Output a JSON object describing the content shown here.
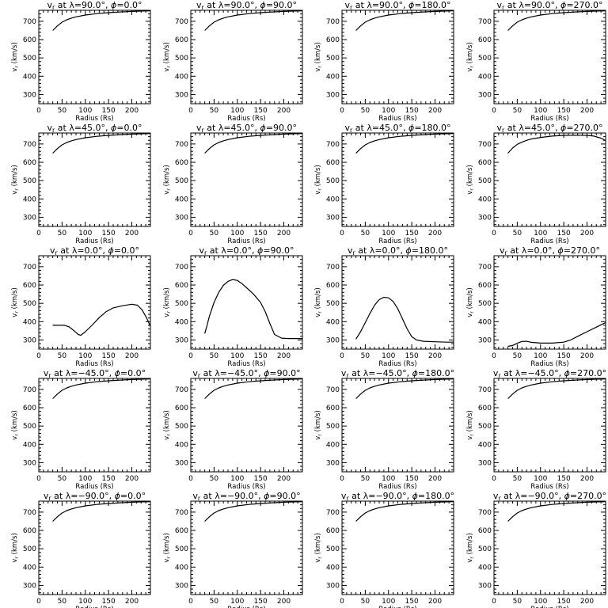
{
  "chart_data": [
    {
      "type": "line",
      "title": {
        "lead": "v",
        "sub": "r",
        "mid": " at λ=90.0°, ",
        "phi": "ϕ",
        "tail": "=0.0°"
      },
      "xlabel": "Radius (Rs)",
      "ylabel": "v",
      "ylabel_sub": "r",
      "ylabel_unit": " (km/s)",
      "xlim": [
        0,
        240
      ],
      "ylim": [
        250,
        760
      ],
      "xticks": [
        "0",
        "50",
        "100",
        "150",
        "200"
      ],
      "yticks": [
        "300",
        "400",
        "500",
        "600",
        "700"
      ],
      "x": [
        30,
        40,
        50,
        60,
        70,
        80,
        100,
        125,
        150,
        175,
        200,
        225,
        240
      ],
      "y": [
        650,
        675,
        695,
        708,
        717,
        724,
        734,
        742,
        747,
        751,
        754,
        756,
        757
      ]
    },
    {
      "type": "line",
      "title": {
        "lead": "v",
        "sub": "r",
        "mid": " at λ=90.0°, ",
        "phi": "ϕ",
        "tail": "=90.0°"
      },
      "xlabel": "Radius (Rs)",
      "ylabel": "v",
      "ylabel_sub": "r",
      "ylabel_unit": " (km/s)",
      "xlim": [
        0,
        240
      ],
      "ylim": [
        250,
        760
      ],
      "xticks": [
        "0",
        "50",
        "100",
        "150",
        "200"
      ],
      "yticks": [
        "300",
        "400",
        "500",
        "600",
        "700"
      ],
      "x": [
        30,
        40,
        50,
        60,
        70,
        80,
        100,
        125,
        150,
        175,
        200,
        225,
        240
      ],
      "y": [
        650,
        675,
        695,
        708,
        717,
        724,
        734,
        742,
        747,
        751,
        754,
        756,
        757
      ]
    },
    {
      "type": "line",
      "title": {
        "lead": "v",
        "sub": "r",
        "mid": " at λ=90.0°, ",
        "phi": "ϕ",
        "tail": "=180.0°"
      },
      "xlabel": "Radius (Rs)",
      "ylabel": "v",
      "ylabel_sub": "r",
      "ylabel_unit": " (km/s)",
      "xlim": [
        0,
        240
      ],
      "ylim": [
        250,
        760
      ],
      "xticks": [
        "0",
        "50",
        "100",
        "150",
        "200"
      ],
      "yticks": [
        "300",
        "400",
        "500",
        "600",
        "700"
      ],
      "x": [
        30,
        40,
        50,
        60,
        70,
        80,
        100,
        125,
        150,
        175,
        200,
        225,
        240
      ],
      "y": [
        650,
        675,
        695,
        708,
        717,
        724,
        734,
        742,
        747,
        751,
        754,
        756,
        757
      ]
    },
    {
      "type": "line",
      "title": {
        "lead": "v",
        "sub": "r",
        "mid": " at λ=90.0°, ",
        "phi": "ϕ",
        "tail": "=270.0°"
      },
      "xlabel": "Radius (Rs)",
      "ylabel": "v",
      "ylabel_sub": "r",
      "ylabel_unit": " (km/s)",
      "xlim": [
        0,
        240
      ],
      "ylim": [
        250,
        760
      ],
      "xticks": [
        "0",
        "50",
        "100",
        "150",
        "200"
      ],
      "yticks": [
        "300",
        "400",
        "500",
        "600",
        "700"
      ],
      "x": [
        30,
        40,
        50,
        60,
        70,
        80,
        100,
        125,
        150,
        175,
        200,
        225,
        240
      ],
      "y": [
        650,
        675,
        695,
        708,
        717,
        724,
        734,
        742,
        747,
        751,
        754,
        756,
        757
      ]
    },
    {
      "type": "line",
      "title": {
        "lead": "v",
        "sub": "r",
        "mid": " at λ=45.0°, ",
        "phi": "ϕ",
        "tail": "=0.0°"
      },
      "xlabel": "Radius (Rs)",
      "ylabel": "v",
      "ylabel_sub": "r",
      "ylabel_unit": " (km/s)",
      "xlim": [
        0,
        240
      ],
      "ylim": [
        250,
        760
      ],
      "xticks": [
        "0",
        "50",
        "100",
        "150",
        "200"
      ],
      "yticks": [
        "300",
        "400",
        "500",
        "600",
        "700"
      ],
      "x": [
        30,
        40,
        50,
        60,
        70,
        80,
        100,
        125,
        150,
        175,
        200,
        225,
        240
      ],
      "y": [
        650,
        675,
        695,
        708,
        717,
        724,
        734,
        742,
        747,
        751,
        754,
        756,
        757
      ]
    },
    {
      "type": "line",
      "title": {
        "lead": "v",
        "sub": "r",
        "mid": " at λ=45.0°, ",
        "phi": "ϕ",
        "tail": "=90.0°"
      },
      "xlabel": "Radius (Rs)",
      "ylabel": "v",
      "ylabel_sub": "r",
      "ylabel_unit": " (km/s)",
      "xlim": [
        0,
        240
      ],
      "ylim": [
        250,
        760
      ],
      "xticks": [
        "0",
        "50",
        "100",
        "150",
        "200"
      ],
      "yticks": [
        "300",
        "400",
        "500",
        "600",
        "700"
      ],
      "x": [
        30,
        40,
        50,
        60,
        70,
        80,
        100,
        125,
        150,
        175,
        200,
        225,
        240
      ],
      "y": [
        650,
        675,
        695,
        708,
        717,
        724,
        734,
        742,
        747,
        751,
        754,
        756,
        757
      ]
    },
    {
      "type": "line",
      "title": {
        "lead": "v",
        "sub": "r",
        "mid": " at λ=45.0°, ",
        "phi": "ϕ",
        "tail": "=180.0°"
      },
      "xlabel": "Radius (Rs)",
      "ylabel": "v",
      "ylabel_sub": "r",
      "ylabel_unit": " (km/s)",
      "xlim": [
        0,
        240
      ],
      "ylim": [
        250,
        760
      ],
      "xticks": [
        "0",
        "50",
        "100",
        "150",
        "200"
      ],
      "yticks": [
        "300",
        "400",
        "500",
        "600",
        "700"
      ],
      "x": [
        30,
        40,
        50,
        60,
        70,
        80,
        100,
        125,
        150,
        175,
        200,
        225,
        240
      ],
      "y": [
        650,
        675,
        695,
        708,
        717,
        724,
        734,
        742,
        747,
        751,
        754,
        756,
        757
      ]
    },
    {
      "type": "line",
      "title": {
        "lead": "v",
        "sub": "r",
        "mid": " at λ=45.0°, ",
        "phi": "ϕ",
        "tail": "=270.0°"
      },
      "xlabel": "Radius (Rs)",
      "ylabel": "v",
      "ylabel_sub": "r",
      "ylabel_unit": " (km/s)",
      "xlim": [
        0,
        240
      ],
      "ylim": [
        250,
        760
      ],
      "xticks": [
        "0",
        "50",
        "100",
        "150",
        "200"
      ],
      "yticks": [
        "300",
        "400",
        "500",
        "600",
        "700"
      ],
      "x": [
        30,
        40,
        50,
        60,
        70,
        80,
        100,
        125,
        150,
        175,
        200,
        215,
        230,
        240
      ],
      "y": [
        650,
        678,
        698,
        710,
        720,
        727,
        736,
        743,
        747,
        748,
        747,
        743,
        732,
        718
      ]
    },
    {
      "type": "line",
      "title": {
        "lead": "v",
        "sub": "r",
        "mid": " at λ=0.0°, ",
        "phi": "ϕ",
        "tail": "=0.0°"
      },
      "xlabel": "Radius (Rs)",
      "ylabel": "v",
      "ylabel_sub": "r",
      "ylabel_unit": " (km/s)",
      "xlim": [
        0,
        240
      ],
      "ylim": [
        250,
        760
      ],
      "xticks": [
        "0",
        "50",
        "100",
        "150",
        "200"
      ],
      "yticks": [
        "300",
        "400",
        "500",
        "600",
        "700"
      ],
      "x": [
        30,
        45,
        55,
        65,
        75,
        85,
        90,
        100,
        115,
        130,
        145,
        160,
        180,
        200,
        212,
        222,
        232,
        240
      ],
      "y": [
        380,
        380,
        380,
        372,
        352,
        330,
        325,
        345,
        382,
        422,
        455,
        475,
        487,
        495,
        490,
        465,
        420,
        375
      ]
    },
    {
      "type": "line",
      "title": {
        "lead": "v",
        "sub": "r",
        "mid": " at λ=0.0°, ",
        "phi": "ϕ",
        "tail": "=90.0°"
      },
      "xlabel": "Radius (Rs)",
      "ylabel": "v",
      "ylabel_sub": "r",
      "ylabel_unit": " (km/s)",
      "xlim": [
        0,
        240
      ],
      "ylim": [
        250,
        760
      ],
      "xticks": [
        "0",
        "50",
        "100",
        "150",
        "200"
      ],
      "yticks": [
        "300",
        "400",
        "500",
        "600",
        "700"
      ],
      "x": [
        30,
        35,
        40,
        50,
        60,
        70,
        80,
        90,
        100,
        110,
        120,
        135,
        150,
        160,
        170,
        180,
        195,
        210,
        225,
        240
      ],
      "y": [
        335,
        380,
        430,
        505,
        560,
        598,
        620,
        630,
        625,
        608,
        585,
        550,
        505,
        455,
        390,
        330,
        310,
        308,
        308,
        308
      ]
    },
    {
      "type": "line",
      "title": {
        "lead": "v",
        "sub": "r",
        "mid": " at λ=0.0°, ",
        "phi": "ϕ",
        "tail": "=180.0°"
      },
      "xlabel": "Radius (Rs)",
      "ylabel": "v",
      "ylabel_sub": "r",
      "ylabel_unit": " (km/s)",
      "xlim": [
        0,
        240
      ],
      "ylim": [
        250,
        760
      ],
      "xticks": [
        "0",
        "50",
        "100",
        "150",
        "200"
      ],
      "yticks": [
        "300",
        "400",
        "500",
        "600",
        "700"
      ],
      "x": [
        30,
        40,
        50,
        60,
        70,
        80,
        90,
        100,
        110,
        120,
        130,
        140,
        150,
        160,
        175,
        200,
        225,
        240
      ],
      "y": [
        305,
        345,
        395,
        445,
        490,
        520,
        533,
        530,
        510,
        470,
        415,
        360,
        318,
        300,
        293,
        290,
        288,
        288
      ]
    },
    {
      "type": "line",
      "title": {
        "lead": "v",
        "sub": "r",
        "mid": " at λ=0.0°, ",
        "phi": "ϕ",
        "tail": "=270.0°"
      },
      "xlabel": "Radius (Rs)",
      "ylabel": "v",
      "ylabel_sub": "r",
      "ylabel_unit": " (km/s)",
      "xlim": [
        0,
        240
      ],
      "ylim": [
        250,
        760
      ],
      "xticks": [
        "0",
        "50",
        "100",
        "150",
        "200"
      ],
      "yticks": [
        "300",
        "400",
        "500",
        "600",
        "700"
      ],
      "x": [
        30,
        40,
        50,
        60,
        70,
        80,
        100,
        125,
        150,
        165,
        180,
        200,
        220,
        240
      ],
      "y": [
        265,
        270,
        282,
        292,
        293,
        287,
        283,
        283,
        288,
        300,
        320,
        345,
        370,
        395
      ]
    },
    {
      "type": "line",
      "title": {
        "lead": "v",
        "sub": "r",
        "mid": " at λ=−45.0°, ",
        "phi": "ϕ",
        "tail": "=0.0°"
      },
      "xlabel": "Radius (Rs)",
      "ylabel": "v",
      "ylabel_sub": "r",
      "ylabel_unit": " (km/s)",
      "xlim": [
        0,
        240
      ],
      "ylim": [
        250,
        760
      ],
      "xticks": [
        "0",
        "50",
        "100",
        "150",
        "200"
      ],
      "yticks": [
        "300",
        "400",
        "500",
        "600",
        "700"
      ],
      "x": [
        30,
        40,
        50,
        60,
        70,
        80,
        100,
        125,
        150,
        175,
        200,
        225,
        240
      ],
      "y": [
        650,
        675,
        695,
        708,
        717,
        724,
        734,
        742,
        747,
        751,
        754,
        756,
        757
      ]
    },
    {
      "type": "line",
      "title": {
        "lead": "v",
        "sub": "r",
        "mid": " at λ=−45.0°, ",
        "phi": "ϕ",
        "tail": "=90.0°"
      },
      "xlabel": "Radius (Rs)",
      "ylabel": "v",
      "ylabel_sub": "r",
      "ylabel_unit": " (km/s)",
      "xlim": [
        0,
        240
      ],
      "ylim": [
        250,
        760
      ],
      "xticks": [
        "0",
        "50",
        "100",
        "150",
        "200"
      ],
      "yticks": [
        "300",
        "400",
        "500",
        "600",
        "700"
      ],
      "x": [
        30,
        40,
        50,
        60,
        70,
        80,
        100,
        125,
        150,
        175,
        200,
        225,
        240
      ],
      "y": [
        650,
        675,
        695,
        708,
        717,
        724,
        734,
        742,
        747,
        751,
        754,
        756,
        757
      ]
    },
    {
      "type": "line",
      "title": {
        "lead": "v",
        "sub": "r",
        "mid": " at λ=−45.0°, ",
        "phi": "ϕ",
        "tail": "=180.0°"
      },
      "xlabel": "Radius (Rs)",
      "ylabel": "v",
      "ylabel_sub": "r",
      "ylabel_unit": " (km/s)",
      "xlim": [
        0,
        240
      ],
      "ylim": [
        250,
        760
      ],
      "xticks": [
        "0",
        "50",
        "100",
        "150",
        "200"
      ],
      "yticks": [
        "300",
        "400",
        "500",
        "600",
        "700"
      ],
      "x": [
        30,
        40,
        50,
        60,
        70,
        80,
        100,
        125,
        150,
        175,
        200,
        225,
        240
      ],
      "y": [
        650,
        675,
        695,
        708,
        717,
        724,
        734,
        742,
        747,
        751,
        754,
        756,
        757
      ]
    },
    {
      "type": "line",
      "title": {
        "lead": "v",
        "sub": "r",
        "mid": " at λ=−45.0°, ",
        "phi": "ϕ",
        "tail": "=270.0°"
      },
      "xlabel": "Radius (Rs)",
      "ylabel": "v",
      "ylabel_sub": "r",
      "ylabel_unit": " (km/s)",
      "xlim": [
        0,
        240
      ],
      "ylim": [
        250,
        760
      ],
      "xticks": [
        "0",
        "50",
        "100",
        "150",
        "200"
      ],
      "yticks": [
        "300",
        "400",
        "500",
        "600",
        "700"
      ],
      "x": [
        30,
        40,
        50,
        60,
        70,
        80,
        100,
        125,
        150,
        175,
        200,
        225,
        240
      ],
      "y": [
        650,
        675,
        695,
        708,
        717,
        724,
        734,
        742,
        747,
        751,
        754,
        756,
        757
      ]
    },
    {
      "type": "line",
      "title": {
        "lead": "v",
        "sub": "r",
        "mid": " at λ=−90.0°, ",
        "phi": "ϕ",
        "tail": "=0.0°"
      },
      "xlabel": "Radius (Rs)",
      "ylabel": "v",
      "ylabel_sub": "r",
      "ylabel_unit": " (km/s)",
      "xlim": [
        0,
        240
      ],
      "ylim": [
        250,
        760
      ],
      "xticks": [
        "0",
        "50",
        "100",
        "150",
        "200"
      ],
      "yticks": [
        "300",
        "400",
        "500",
        "600",
        "700"
      ],
      "x": [
        30,
        40,
        50,
        60,
        70,
        80,
        100,
        125,
        150,
        175,
        200,
        225,
        240
      ],
      "y": [
        650,
        675,
        695,
        708,
        717,
        724,
        734,
        742,
        747,
        751,
        754,
        756,
        757
      ]
    },
    {
      "type": "line",
      "title": {
        "lead": "v",
        "sub": "r",
        "mid": " at λ=−90.0°, ",
        "phi": "ϕ",
        "tail": "=90.0°"
      },
      "xlabel": "Radius (Rs)",
      "ylabel": "v",
      "ylabel_sub": "r",
      "ylabel_unit": " (km/s)",
      "xlim": [
        0,
        240
      ],
      "ylim": [
        250,
        760
      ],
      "xticks": [
        "0",
        "50",
        "100",
        "150",
        "200"
      ],
      "yticks": [
        "300",
        "400",
        "500",
        "600",
        "700"
      ],
      "x": [
        30,
        40,
        50,
        60,
        70,
        80,
        100,
        125,
        150,
        175,
        200,
        225,
        240
      ],
      "y": [
        650,
        675,
        695,
        708,
        717,
        724,
        734,
        742,
        747,
        751,
        754,
        756,
        757
      ]
    },
    {
      "type": "line",
      "title": {
        "lead": "v",
        "sub": "r",
        "mid": " at λ=−90.0°, ",
        "phi": "ϕ",
        "tail": "=180.0°"
      },
      "xlabel": "Radius (Rs)",
      "ylabel": "v",
      "ylabel_sub": "r",
      "ylabel_unit": " (km/s)",
      "xlim": [
        0,
        240
      ],
      "ylim": [
        250,
        760
      ],
      "xticks": [
        "0",
        "50",
        "100",
        "150",
        "200"
      ],
      "yticks": [
        "300",
        "400",
        "500",
        "600",
        "700"
      ],
      "x": [
        30,
        40,
        50,
        60,
        70,
        80,
        100,
        125,
        150,
        175,
        200,
        225,
        240
      ],
      "y": [
        650,
        675,
        695,
        708,
        717,
        724,
        734,
        742,
        747,
        751,
        754,
        756,
        757
      ]
    },
    {
      "type": "line",
      "title": {
        "lead": "v",
        "sub": "r",
        "mid": " at λ=−90.0°, ",
        "phi": "ϕ",
        "tail": "=270.0°"
      },
      "xlabel": "Radius (Rs)",
      "ylabel": "v",
      "ylabel_sub": "r",
      "ylabel_unit": " (km/s)",
      "xlim": [
        0,
        240
      ],
      "ylim": [
        250,
        760
      ],
      "xticks": [
        "0",
        "50",
        "100",
        "150",
        "200"
      ],
      "yticks": [
        "300",
        "400",
        "500",
        "600",
        "700"
      ],
      "x": [
        30,
        40,
        50,
        60,
        70,
        80,
        100,
        125,
        150,
        175,
        200,
        225,
        240
      ],
      "y": [
        650,
        675,
        695,
        708,
        717,
        724,
        734,
        742,
        747,
        751,
        754,
        756,
        757
      ]
    }
  ]
}
